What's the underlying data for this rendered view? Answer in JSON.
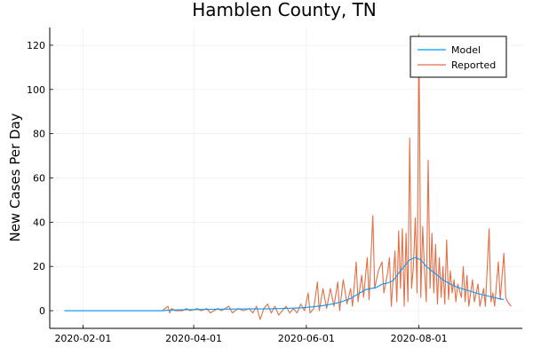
{
  "chart_data": {
    "type": "line",
    "title": "Hamblen County, TN",
    "xlabel": "",
    "ylabel": "New Cases Per Day",
    "x_start": "2020-01-22",
    "x_end": "2020-09-20",
    "xlim": [
      "2020-01-14",
      "2020-09-26"
    ],
    "ylim": [
      -8,
      128
    ],
    "xticks": [
      "2020-02-01",
      "2020-04-01",
      "2020-06-01",
      "2020-08-01"
    ],
    "yticks": [
      0,
      20,
      40,
      60,
      80,
      100,
      120
    ],
    "grid": true,
    "legend_position": "top-right",
    "series": [
      {
        "name": "Model",
        "color": "#009AFA",
        "points": [
          [
            "2020-01-22",
            0
          ],
          [
            "2020-03-15",
            0
          ],
          [
            "2020-03-20",
            0.3
          ],
          [
            "2020-03-25",
            0.4
          ],
          [
            "2020-04-01",
            0.5
          ],
          [
            "2020-04-10",
            0.6
          ],
          [
            "2020-04-20",
            0.7
          ],
          [
            "2020-04-30",
            0.8
          ],
          [
            "2020-05-10",
            0.8
          ],
          [
            "2020-05-20",
            1.0
          ],
          [
            "2020-05-30",
            1.3
          ],
          [
            "2020-06-05",
            1.8
          ],
          [
            "2020-06-10",
            2.3
          ],
          [
            "2020-06-15",
            3.0
          ],
          [
            "2020-06-20",
            4.0
          ],
          [
            "2020-06-25",
            5.5
          ],
          [
            "2020-06-30",
            8.0
          ],
          [
            "2020-07-03",
            9.5
          ],
          [
            "2020-07-06",
            10.0
          ],
          [
            "2020-07-09",
            10.5
          ],
          [
            "2020-07-12",
            12.0
          ],
          [
            "2020-07-15",
            12.5
          ],
          [
            "2020-07-18",
            13.5
          ],
          [
            "2020-07-21",
            17.0
          ],
          [
            "2020-07-24",
            20.0
          ],
          [
            "2020-07-27",
            23.0
          ],
          [
            "2020-07-30",
            24.0
          ],
          [
            "2020-08-02",
            23.0
          ],
          [
            "2020-08-05",
            20.0
          ],
          [
            "2020-08-08",
            18.0
          ],
          [
            "2020-08-11",
            16.0
          ],
          [
            "2020-08-14",
            14.0
          ],
          [
            "2020-08-18",
            12.0
          ],
          [
            "2020-08-22",
            10.5
          ],
          [
            "2020-08-26",
            9.5
          ],
          [
            "2020-08-30",
            8.5
          ],
          [
            "2020-09-03",
            7.5
          ],
          [
            "2020-09-08",
            6.5
          ],
          [
            "2020-09-13",
            5.5
          ],
          [
            "2020-09-16",
            5.0
          ]
        ]
      },
      {
        "name": "Reported",
        "color": "#E26F46",
        "points": [
          [
            "2020-01-22",
            0
          ],
          [
            "2020-03-15",
            0
          ],
          [
            "2020-03-18",
            2
          ],
          [
            "2020-03-19",
            -1
          ],
          [
            "2020-03-20",
            1
          ],
          [
            "2020-03-22",
            0
          ],
          [
            "2020-03-26",
            0
          ],
          [
            "2020-03-28",
            1
          ],
          [
            "2020-03-30",
            0
          ],
          [
            "2020-04-03",
            1
          ],
          [
            "2020-04-05",
            0
          ],
          [
            "2020-04-08",
            1
          ],
          [
            "2020-04-10",
            -1
          ],
          [
            "2020-04-14",
            1
          ],
          [
            "2020-04-16",
            0
          ],
          [
            "2020-04-20",
            2
          ],
          [
            "2020-04-22",
            -1
          ],
          [
            "2020-04-25",
            1
          ],
          [
            "2020-04-28",
            0
          ],
          [
            "2020-05-01",
            1
          ],
          [
            "2020-05-03",
            -1
          ],
          [
            "2020-05-05",
            2
          ],
          [
            "2020-05-07",
            -4
          ],
          [
            "2020-05-09",
            1
          ],
          [
            "2020-05-11",
            3
          ],
          [
            "2020-05-13",
            -1
          ],
          [
            "2020-05-15",
            2
          ],
          [
            "2020-05-17",
            -2
          ],
          [
            "2020-05-19",
            0
          ],
          [
            "2020-05-21",
            2
          ],
          [
            "2020-05-23",
            -1
          ],
          [
            "2020-05-25",
            1
          ],
          [
            "2020-05-27",
            -1
          ],
          [
            "2020-05-29",
            3
          ],
          [
            "2020-05-31",
            0
          ],
          [
            "2020-06-02",
            8
          ],
          [
            "2020-06-03",
            -1
          ],
          [
            "2020-06-05",
            1
          ],
          [
            "2020-06-07",
            13
          ],
          [
            "2020-06-08",
            0
          ],
          [
            "2020-06-10",
            10
          ],
          [
            "2020-06-12",
            1
          ],
          [
            "2020-06-14",
            10
          ],
          [
            "2020-06-16",
            2
          ],
          [
            "2020-06-18",
            13
          ],
          [
            "2020-06-19",
            0
          ],
          [
            "2020-06-21",
            14
          ],
          [
            "2020-06-23",
            3
          ],
          [
            "2020-06-25",
            10
          ],
          [
            "2020-06-26",
            2
          ],
          [
            "2020-06-28",
            22
          ],
          [
            "2020-06-29",
            4
          ],
          [
            "2020-07-01",
            16
          ],
          [
            "2020-07-02",
            6
          ],
          [
            "2020-07-04",
            24
          ],
          [
            "2020-07-05",
            5
          ],
          [
            "2020-07-07",
            43
          ],
          [
            "2020-07-08",
            10
          ],
          [
            "2020-07-10",
            18
          ],
          [
            "2020-07-12",
            22
          ],
          [
            "2020-07-13",
            8
          ],
          [
            "2020-07-15",
            17
          ],
          [
            "2020-07-16",
            24
          ],
          [
            "2020-07-17",
            2
          ],
          [
            "2020-07-19",
            27
          ],
          [
            "2020-07-20",
            4
          ],
          [
            "2020-07-21",
            36
          ],
          [
            "2020-07-22",
            10
          ],
          [
            "2020-07-23",
            37
          ],
          [
            "2020-07-24",
            2
          ],
          [
            "2020-07-25",
            35
          ],
          [
            "2020-07-26",
            4
          ],
          [
            "2020-07-27",
            78
          ],
          [
            "2020-07-28",
            10
          ],
          [
            "2020-07-29",
            20
          ],
          [
            "2020-07-30",
            42
          ],
          [
            "2020-07-31",
            8
          ],
          [
            "2020-08-01",
            125
          ],
          [
            "2020-08-02",
            6
          ],
          [
            "2020-08-03",
            38
          ],
          [
            "2020-08-04",
            18
          ],
          [
            "2020-08-05",
            4
          ],
          [
            "2020-08-06",
            68
          ],
          [
            "2020-08-07",
            10
          ],
          [
            "2020-08-08",
            35
          ],
          [
            "2020-08-09",
            8
          ],
          [
            "2020-08-10",
            30
          ],
          [
            "2020-08-11",
            3
          ],
          [
            "2020-08-12",
            24
          ],
          [
            "2020-08-13",
            6
          ],
          [
            "2020-08-14",
            20
          ],
          [
            "2020-08-15",
            3
          ],
          [
            "2020-08-16",
            32
          ],
          [
            "2020-08-17",
            5
          ],
          [
            "2020-08-18",
            18
          ],
          [
            "2020-08-19",
            8
          ],
          [
            "2020-08-20",
            14
          ],
          [
            "2020-08-21",
            4
          ],
          [
            "2020-08-22",
            12
          ],
          [
            "2020-08-24",
            6
          ],
          [
            "2020-08-25",
            20
          ],
          [
            "2020-08-26",
            4
          ],
          [
            "2020-08-27",
            16
          ],
          [
            "2020-08-28",
            2
          ],
          [
            "2020-08-30",
            14
          ],
          [
            "2020-08-31",
            4
          ],
          [
            "2020-09-02",
            12
          ],
          [
            "2020-09-03",
            2
          ],
          [
            "2020-09-05",
            10
          ],
          [
            "2020-09-06",
            2
          ],
          [
            "2020-09-08",
            37
          ],
          [
            "2020-09-09",
            4
          ],
          [
            "2020-09-10",
            8
          ],
          [
            "2020-09-11",
            2
          ],
          [
            "2020-09-13",
            22
          ],
          [
            "2020-09-14",
            5
          ],
          [
            "2020-09-16",
            26
          ],
          [
            "2020-09-17",
            6
          ],
          [
            "2020-09-18",
            4
          ],
          [
            "2020-09-20",
            2
          ]
        ]
      }
    ]
  }
}
